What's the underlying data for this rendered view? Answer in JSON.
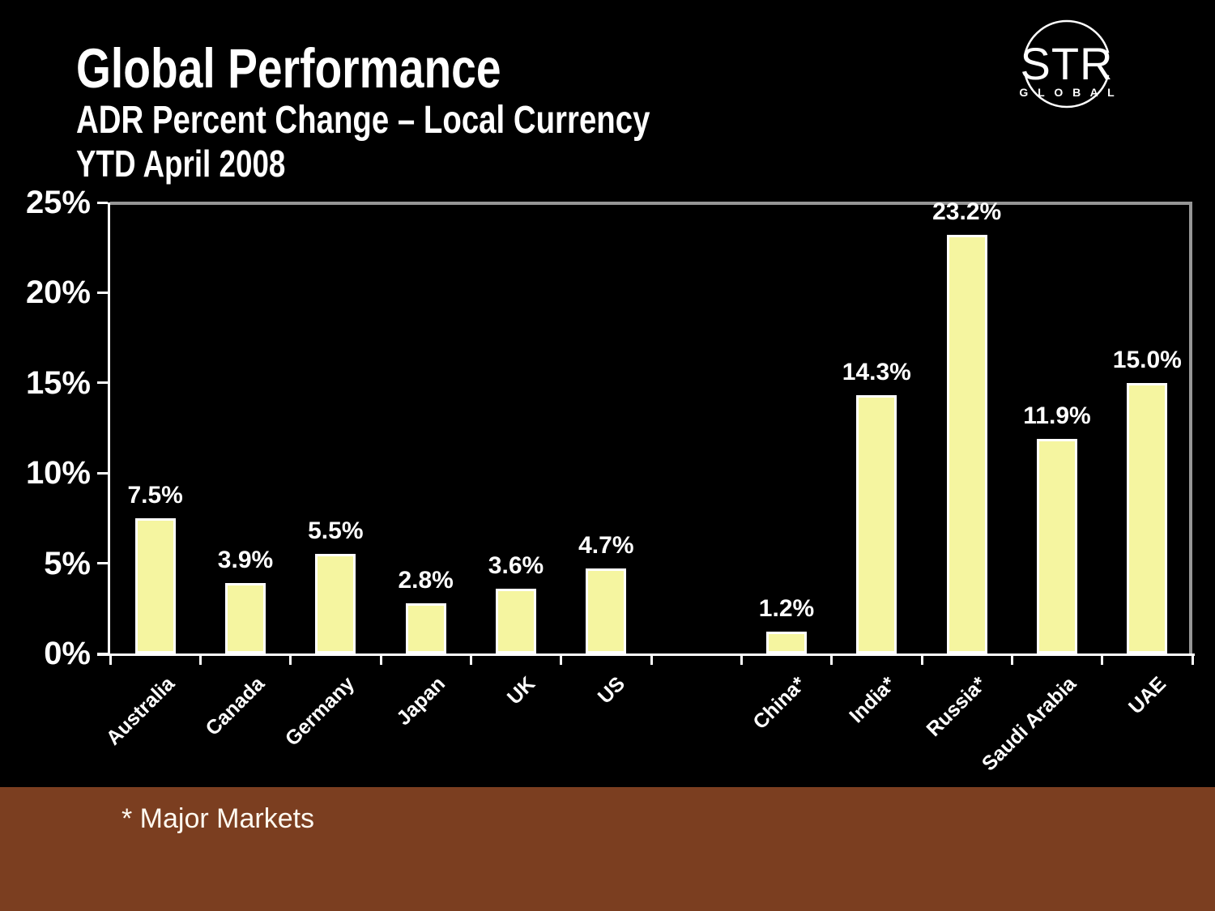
{
  "header": {
    "title": "Global Performance",
    "subtitle": "ADR Percent Change – Local Currency",
    "period": "YTD April 2008"
  },
  "logo": {
    "line1": "STR",
    "line2": "G L O B A L"
  },
  "footnote": "* Major Markets",
  "colors": {
    "bg": "#000000",
    "text": "#FFFFFF",
    "axis": "#FFFFFF",
    "grid": "#969696",
    "bar-fill": "#F5F5A0",
    "bar-border": "#FFFFFF",
    "footer-band": "#7B3E20"
  },
  "chart_data": {
    "type": "bar",
    "title": "Global Performance — ADR Percent Change – Local Currency, YTD April 2008",
    "categories": [
      "Australia",
      "Canada",
      "Germany",
      "Japan",
      "UK",
      "US",
      "China*",
      "India*",
      "Russia*",
      "Saudi Arabia",
      "UAE"
    ],
    "values": [
      7.5,
      3.9,
      5.5,
      2.8,
      3.6,
      4.7,
      1.2,
      14.3,
      23.2,
      11.9,
      15.0
    ],
    "labels": [
      "7.5%",
      "3.9%",
      "5.5%",
      "2.8%",
      "3.6%",
      "4.7%",
      "1.2%",
      "14.3%",
      "23.2%",
      "11.9%",
      "15.0%"
    ],
    "xlabel": "",
    "ylabel": "",
    "ylim": [
      0,
      25
    ],
    "yticks": [
      0,
      5,
      10,
      15,
      20,
      25
    ],
    "ytick_labels": [
      "0%",
      "5%",
      "10%",
      "15%",
      "20%",
      "25%"
    ],
    "grid": false,
    "legend": false,
    "layout": {
      "total_slots": 12,
      "slots": [
        0,
        1,
        2,
        3,
        4,
        5,
        7,
        8,
        9,
        10,
        11
      ],
      "gap_note": "one empty category slot between US and China*",
      "category_label_rotation_deg": -45
    }
  }
}
